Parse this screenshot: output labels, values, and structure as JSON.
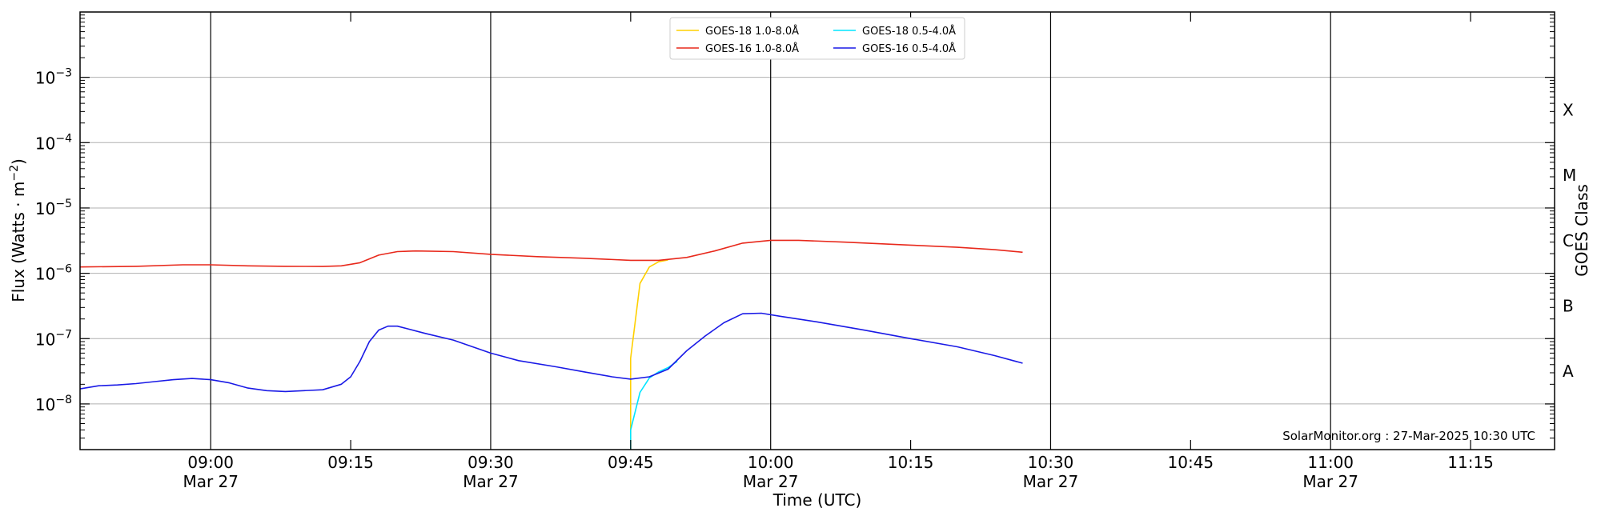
{
  "chart_data": {
    "type": "line",
    "xlabel": "Time (UTC)",
    "ylabel": "Flux (Watts · m",
    "ylabel_sup": "−2",
    "ylabel_close": ")",
    "right_label": "GOES Class",
    "credit": "SolarMonitor.org : 27-Mar-2025 10:30 UTC",
    "x_range": [
      "08:46",
      "11:24"
    ],
    "ylim": [
      2e-09,
      0.01
    ],
    "yscale": "log",
    "grid": "horizontal at decades",
    "legend_placement": "top-center",
    "x_ticks": [
      {
        "time": "09:00",
        "label": "09:00",
        "sub": "Mar 27",
        "major": true
      },
      {
        "time": "09:15",
        "label": "09:15",
        "sub": "",
        "major": false
      },
      {
        "time": "09:30",
        "label": "09:30",
        "sub": "Mar 27",
        "major": true
      },
      {
        "time": "09:45",
        "label": "09:45",
        "sub": "",
        "major": false
      },
      {
        "time": "10:00",
        "label": "10:00",
        "sub": "Mar 27",
        "major": true
      },
      {
        "time": "10:15",
        "label": "10:15",
        "sub": "",
        "major": false
      },
      {
        "time": "10:30",
        "label": "10:30",
        "sub": "Mar 27",
        "major": true
      },
      {
        "time": "10:45",
        "label": "10:45",
        "sub": "",
        "major": false
      },
      {
        "time": "11:00",
        "label": "11:00",
        "sub": "Mar 27",
        "major": true
      },
      {
        "time": "11:15",
        "label": "11:15",
        "sub": "",
        "major": false
      }
    ],
    "y_ticks": [
      {
        "value": 1e-08,
        "base": "10",
        "exp": "−8"
      },
      {
        "value": 1e-07,
        "base": "10",
        "exp": "−7"
      },
      {
        "value": 1e-06,
        "base": "10",
        "exp": "−6"
      },
      {
        "value": 1e-05,
        "base": "10",
        "exp": "−5"
      },
      {
        "value": 0.0001,
        "base": "10",
        "exp": "−4"
      },
      {
        "value": 0.001,
        "base": "10",
        "exp": "−3"
      }
    ],
    "goes_classes": [
      {
        "label": "A",
        "value": 3.16e-08
      },
      {
        "label": "B",
        "value": 3.16e-07
      },
      {
        "label": "C",
        "value": 3.16e-06
      },
      {
        "label": "M",
        "value": 3.16e-05
      },
      {
        "label": "X",
        "value": 0.000316
      }
    ],
    "series": [
      {
        "name": "GOES-18 1.0-8.0Å",
        "color": "#ffd000",
        "points": [
          [
            "09:45",
            2e-09
          ],
          [
            "09:45",
            5e-08
          ],
          [
            "09:46",
            7e-07
          ],
          [
            "09:47",
            1.25e-06
          ],
          [
            "09:48",
            1.5e-06
          ],
          [
            "09:49",
            1.6e-06
          ]
        ]
      },
      {
        "name": "GOES-18 0.5-4.0Å",
        "color": "#00e5ff",
        "points": [
          [
            "09:45",
            2e-09
          ],
          [
            "09:45",
            4e-09
          ],
          [
            "09:46",
            1.5e-08
          ],
          [
            "09:47",
            2.5e-08
          ],
          [
            "09:48",
            3.1e-08
          ],
          [
            "09:49",
            3.6e-08
          ],
          [
            "09:50",
            4.5e-08
          ]
        ]
      },
      {
        "name": "GOES-16 1.0-8.0Å",
        "color": "#e8291c",
        "points": [
          [
            "08:46",
            1.25e-06
          ],
          [
            "08:52",
            1.28e-06
          ],
          [
            "08:57",
            1.35e-06
          ],
          [
            "09:00",
            1.35e-06
          ],
          [
            "09:04",
            1.3e-06
          ],
          [
            "09:08",
            1.28e-06
          ],
          [
            "09:12",
            1.27e-06
          ],
          [
            "09:14",
            1.3e-06
          ],
          [
            "09:16",
            1.45e-06
          ],
          [
            "09:18",
            1.9e-06
          ],
          [
            "09:20",
            2.15e-06
          ],
          [
            "09:22",
            2.2e-06
          ],
          [
            "09:26",
            2.15e-06
          ],
          [
            "09:30",
            1.95e-06
          ],
          [
            "09:35",
            1.8e-06
          ],
          [
            "09:40",
            1.7e-06
          ],
          [
            "09:45",
            1.58e-06
          ],
          [
            "09:48",
            1.58e-06
          ],
          [
            "09:51",
            1.75e-06
          ],
          [
            "09:54",
            2.2e-06
          ],
          [
            "09:57",
            2.9e-06
          ],
          [
            "10:00",
            3.2e-06
          ],
          [
            "10:03",
            3.2e-06
          ],
          [
            "10:08",
            3e-06
          ],
          [
            "10:15",
            2.7e-06
          ],
          [
            "10:20",
            2.5e-06
          ],
          [
            "10:24",
            2.3e-06
          ],
          [
            "10:27",
            2.1e-06
          ]
        ]
      },
      {
        "name": "GOES-16 0.5-4.0Å",
        "color": "#1a1ae6",
        "points": [
          [
            "08:46",
            1.7e-08
          ],
          [
            "08:48",
            1.9e-08
          ],
          [
            "08:50",
            1.95e-08
          ],
          [
            "08:52",
            2.05e-08
          ],
          [
            "08:54",
            2.2e-08
          ],
          [
            "08:56",
            2.35e-08
          ],
          [
            "08:58",
            2.45e-08
          ],
          [
            "09:00",
            2.35e-08
          ],
          [
            "09:02",
            2.1e-08
          ],
          [
            "09:04",
            1.75e-08
          ],
          [
            "09:06",
            1.6e-08
          ],
          [
            "09:08",
            1.55e-08
          ],
          [
            "09:10",
            1.6e-08
          ],
          [
            "09:12",
            1.65e-08
          ],
          [
            "09:14",
            2e-08
          ],
          [
            "09:15",
            2.6e-08
          ],
          [
            "09:16",
            4.5e-08
          ],
          [
            "09:17",
            9e-08
          ],
          [
            "09:18",
            1.35e-07
          ],
          [
            "09:19",
            1.55e-07
          ],
          [
            "09:20",
            1.55e-07
          ],
          [
            "09:23",
            1.2e-07
          ],
          [
            "09:26",
            9.5e-08
          ],
          [
            "09:30",
            6e-08
          ],
          [
            "09:33",
            4.6e-08
          ],
          [
            "09:37",
            3.7e-08
          ],
          [
            "09:40",
            3.1e-08
          ],
          [
            "09:43",
            2.6e-08
          ],
          [
            "09:45",
            2.4e-08
          ],
          [
            "09:47",
            2.6e-08
          ],
          [
            "09:49",
            3.4e-08
          ],
          [
            "09:51",
            6.5e-08
          ],
          [
            "09:53",
            1.1e-07
          ],
          [
            "09:55",
            1.75e-07
          ],
          [
            "09:57",
            2.4e-07
          ],
          [
            "09:59",
            2.45e-07
          ],
          [
            "10:01",
            2.2e-07
          ],
          [
            "10:05",
            1.8e-07
          ],
          [
            "10:10",
            1.35e-07
          ],
          [
            "10:15",
            1e-07
          ],
          [
            "10:20",
            7.5e-08
          ],
          [
            "10:24",
            5.5e-08
          ],
          [
            "10:27",
            4.2e-08
          ]
        ]
      }
    ]
  }
}
